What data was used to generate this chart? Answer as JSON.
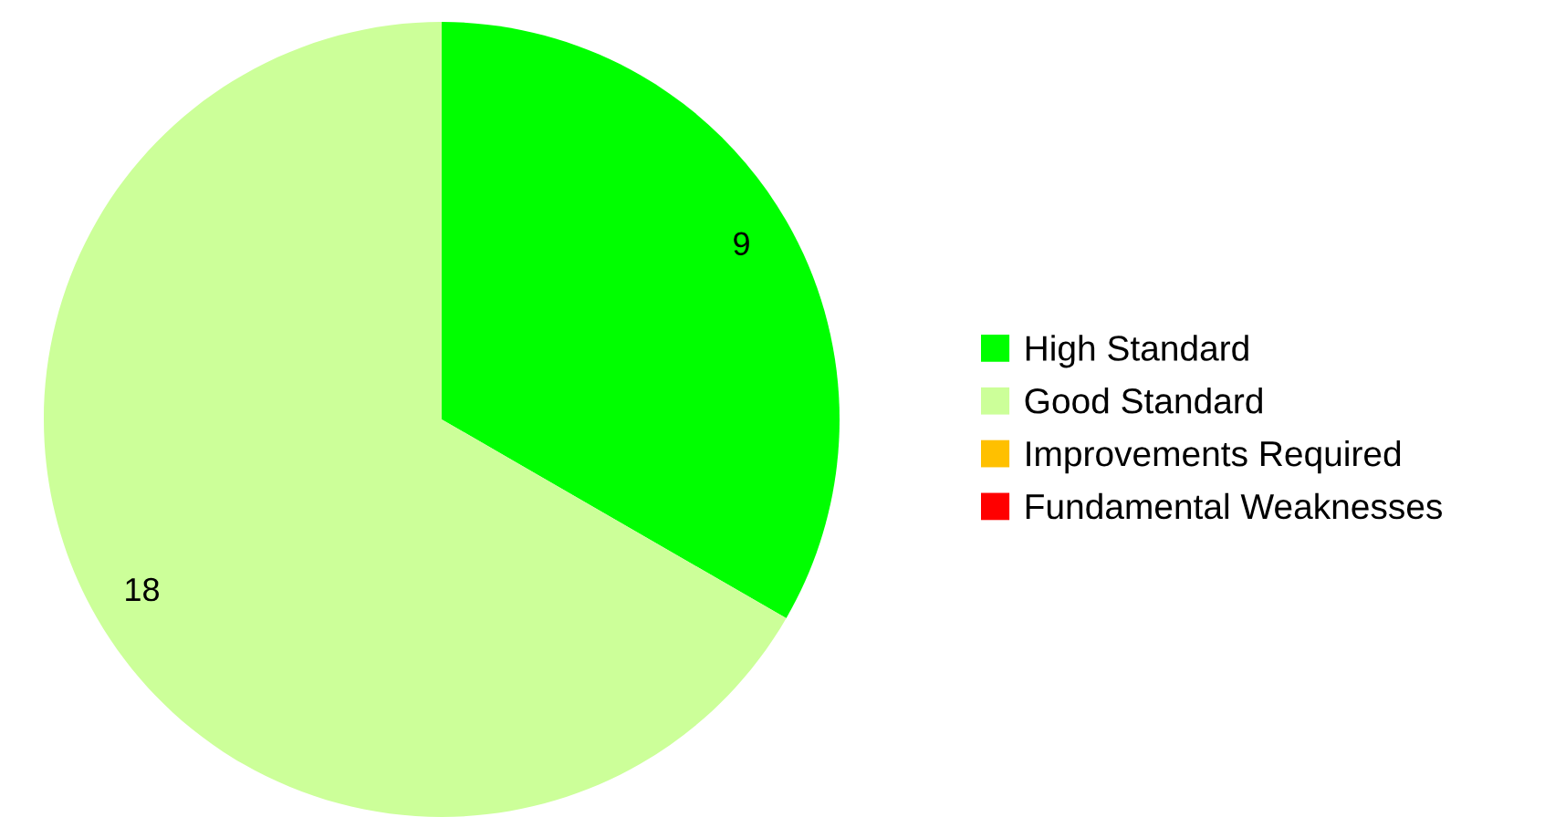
{
  "chart_data": {
    "type": "pie",
    "categories": [
      "High Standard",
      "Good Standard",
      "Improvements Required",
      "Fundamental Weaknesses"
    ],
    "values": [
      9,
      18,
      0,
      0
    ],
    "colors": [
      "#00ff00",
      "#ccff99",
      "#ffc000",
      "#ff0000"
    ],
    "value_labels": [
      "9",
      "18",
      null,
      null
    ],
    "legend": "right"
  }
}
